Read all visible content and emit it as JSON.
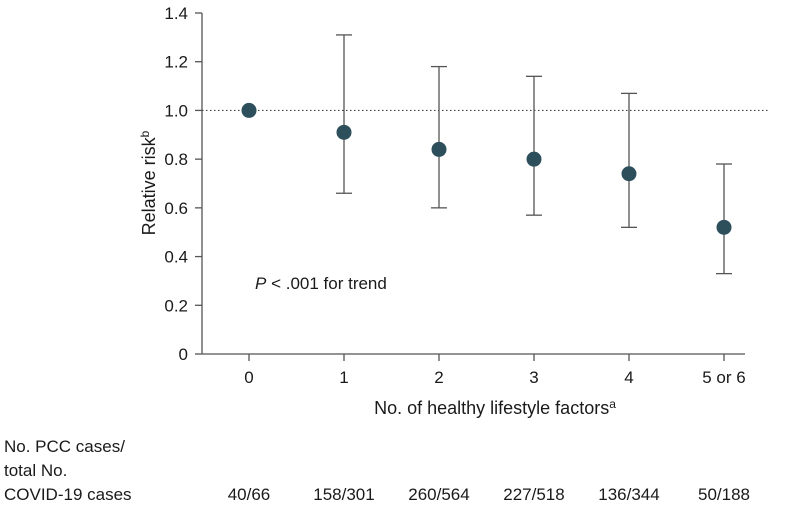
{
  "chart_data": {
    "type": "scatter",
    "title": "",
    "xlabel": "No. of healthy lifestyle factors",
    "xlabel_superscript": "a",
    "ylabel": "Relative risk",
    "ylabel_superscript": "b",
    "ylim": [
      0,
      1.4
    ],
    "yticks": [
      "0",
      "0.2",
      "0.4",
      "0.6",
      "0.8",
      "1.0",
      "1.2",
      "1.4"
    ],
    "reference_line": 1.0,
    "grid": false,
    "categories": [
      "0",
      "1",
      "2",
      "3",
      "4",
      "5 or 6"
    ],
    "values": [
      1.0,
      0.91,
      0.84,
      0.8,
      0.74,
      0.52
    ],
    "ci_lower": [
      null,
      0.66,
      0.6,
      0.57,
      0.52,
      0.33
    ],
    "ci_upper": [
      null,
      1.31,
      1.18,
      1.14,
      1.07,
      0.78
    ],
    "annotation": {
      "italic": "P",
      "text": " < .001 for trend"
    },
    "marker_color": "#2d4f5c",
    "line_color": "#555555"
  },
  "case_table": {
    "label_lines": [
      "No. PCC cases/",
      "total No.",
      "COVID-19 cases"
    ],
    "values": [
      "40/66",
      "158/301",
      "260/564",
      "227/518",
      "136/344",
      "50/188"
    ]
  }
}
